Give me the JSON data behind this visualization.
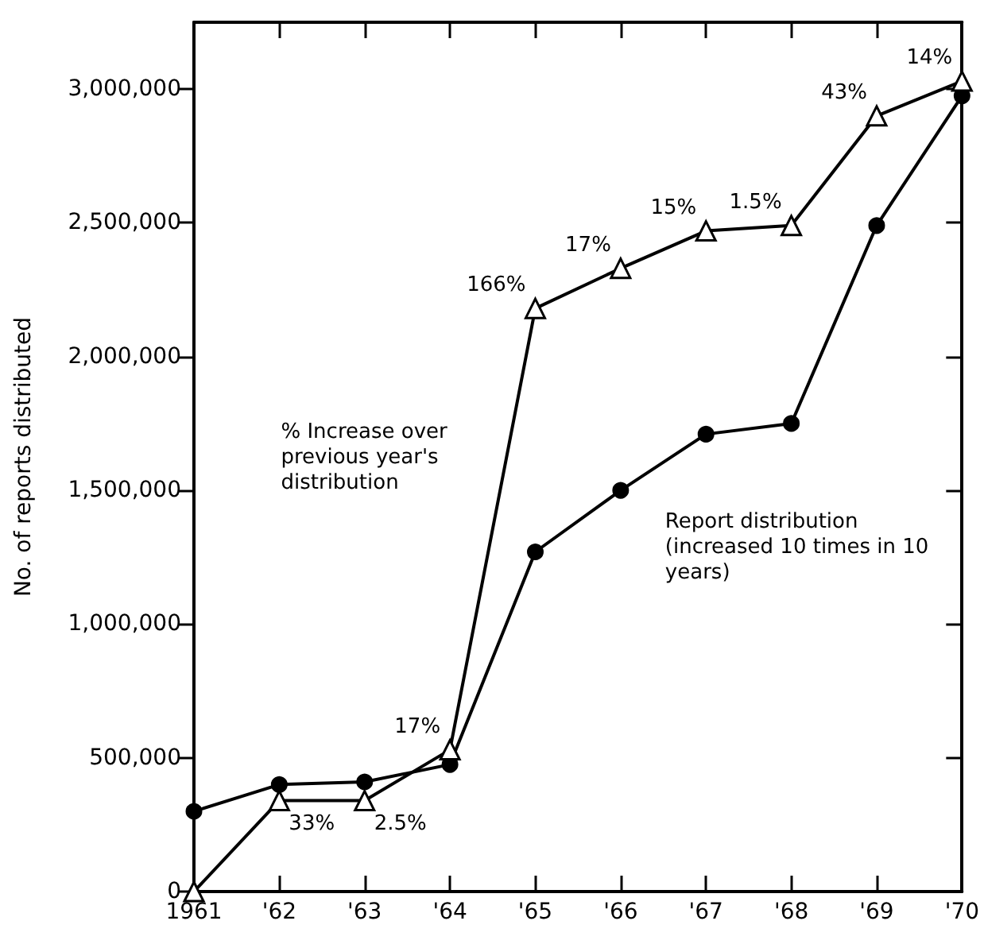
{
  "chart_data": {
    "type": "line",
    "ylabel": "No. of reports distributed",
    "categories": [
      "1961",
      "'62",
      "'63",
      "'64",
      "'65",
      "'66",
      "'67",
      "'68",
      "'69",
      "'70"
    ],
    "ylim": [
      0,
      3250000
    ],
    "yticks": [
      {
        "value": 0,
        "label": "0"
      },
      {
        "value": 500000,
        "label": "500,000"
      },
      {
        "value": 1000000,
        "label": "1,000,000"
      },
      {
        "value": 1500000,
        "label": "1,500,000"
      },
      {
        "value": 2000000,
        "label": "2,000,000"
      },
      {
        "value": 2500000,
        "label": "2,500,000"
      },
      {
        "value": 3000000,
        "label": "3,000,000"
      }
    ],
    "grid": false,
    "legend": false,
    "line_style": "solid",
    "series": [
      {
        "name": "Report distribution (increased 10 times in 10 years)",
        "color": "#000000",
        "marker": "circle",
        "values": [
          300000,
          400000,
          410000,
          475000,
          1270000,
          1500000,
          1710000,
          1750000,
          2490000,
          2975000
        ]
      },
      {
        "name": "% Increase over previous year's distribution",
        "color": "#000000",
        "marker": "triangle",
        "values": [
          0,
          340000,
          340000,
          530000,
          2180000,
          2330000,
          2470000,
          2490000,
          2900000,
          3030000
        ]
      }
    ],
    "annotations": [
      {
        "text": "33%",
        "x": "'62",
        "y": 340000
      },
      {
        "text": "2.5%",
        "x": "'63",
        "y": 340000
      },
      {
        "text": "17%",
        "x": "'64",
        "y": 530000
      },
      {
        "text": "166%",
        "x": "'65",
        "y": 2180000
      },
      {
        "text": "17%",
        "x": "'66",
        "y": 2330000
      },
      {
        "text": "15%",
        "x": "'67",
        "y": 2470000
      },
      {
        "text": "1.5%",
        "x": "'68",
        "y": 2490000
      },
      {
        "text": "43%",
        "x": "'69",
        "y": 2900000
      },
      {
        "text": "14%",
        "x": "'70",
        "y": 3030000
      }
    ]
  }
}
